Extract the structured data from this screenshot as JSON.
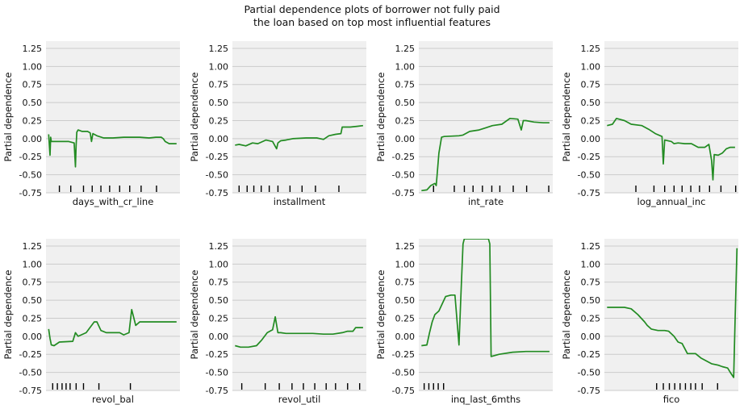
{
  "title_line1": "Partial dependence plots of borrower not fully paid",
  "title_line2": "the loan based on top most influential features",
  "style": {
    "panel_bg": "#f0f0f0",
    "grid": "#cbcbcb",
    "line": "#228b22",
    "text": "#111111"
  },
  "chart_data": [
    {
      "type": "line",
      "xlabel": "days_with_cr_line",
      "ylabel": "Partial dependence",
      "ylim": [
        -0.75,
        1.35
      ],
      "yticks": [
        -0.75,
        -0.5,
        -0.25,
        0.0,
        0.25,
        0.5,
        0.75,
        1.0,
        1.25
      ],
      "yticklabels": [
        "-0.75",
        "-0.50",
        "-0.25",
        "0.00",
        "0.25",
        "0.50",
        "0.75",
        "1.00",
        "1.25"
      ],
      "xlim": [
        0,
        100
      ],
      "grid": true,
      "deciles": [
        10,
        18.5,
        28,
        34.5,
        41,
        47.5,
        55,
        62.5,
        71,
        82.5
      ],
      "x": [
        2,
        3,
        3.5,
        4,
        6,
        9,
        12,
        17,
        21,
        22,
        22.5,
        23,
        24,
        27,
        31,
        33,
        34,
        35,
        38,
        43,
        50,
        58,
        70,
        77,
        82,
        86,
        87.5,
        89,
        92,
        96.5,
        97.5
      ],
      "y": [
        0.06,
        -0.23,
        0.02,
        -0.04,
        -0.04,
        -0.04,
        -0.04,
        -0.04,
        -0.06,
        -0.39,
        -0.1,
        0.09,
        0.12,
        0.1,
        0.1,
        0.08,
        -0.04,
        0.07,
        0.04,
        0.01,
        0.01,
        0.02,
        0.02,
        0.01,
        0.02,
        0.02,
        0.0,
        -0.04,
        -0.07,
        -0.07,
        -0.07
      ]
    },
    {
      "type": "line",
      "xlabel": "installment",
      "ylabel": "Partial dependence",
      "ylim": [
        -0.75,
        1.35
      ],
      "yticks": [
        -0.75,
        -0.5,
        -0.25,
        0.0,
        0.25,
        0.5,
        0.75,
        1.0,
        1.25
      ],
      "yticklabels": [
        "-0.75",
        "-0.50",
        "-0.25",
        "0.00",
        "0.25",
        "0.50",
        "0.75",
        "1.00",
        "1.25"
      ],
      "xlim": [
        0,
        100
      ],
      "grid": true,
      "deciles": [
        5,
        11,
        16,
        21.5,
        27.5,
        34,
        43,
        52,
        62,
        79.5
      ],
      "x": [
        2,
        5,
        10,
        15,
        19,
        25,
        30,
        33,
        34,
        36,
        40,
        45,
        55,
        63,
        68,
        72,
        77,
        81,
        82,
        88,
        93,
        97.5
      ],
      "y": [
        -0.09,
        -0.08,
        -0.1,
        -0.06,
        -0.07,
        -0.02,
        -0.04,
        -0.14,
        -0.06,
        -0.03,
        -0.02,
        0.0,
        0.01,
        0.01,
        -0.01,
        0.04,
        0.06,
        0.07,
        0.16,
        0.16,
        0.17,
        0.18
      ]
    },
    {
      "type": "line",
      "xlabel": "int_rate",
      "ylabel": "Partial dependence",
      "ylim": [
        -0.75,
        1.35
      ],
      "yticks": [
        -0.75,
        -0.5,
        -0.25,
        0.0,
        0.25,
        0.5,
        0.75,
        1.0,
        1.25
      ],
      "yticklabels": [
        "-0.75",
        "-0.50",
        "-0.25",
        "0.00",
        "0.25",
        "0.50",
        "0.75",
        "1.00",
        "1.25"
      ],
      "xlim": [
        0,
        100
      ],
      "grid": true,
      "deciles": [
        11,
        26.5,
        34,
        40.5,
        47.5,
        54.5,
        60.5,
        70.5,
        80.5,
        97
      ],
      "x": [
        2,
        6,
        9,
        12,
        13,
        15,
        17,
        19,
        30,
        33,
        38,
        45,
        50,
        55,
        62,
        68,
        74,
        76.5,
        78,
        80,
        86,
        93,
        97.5
      ],
      "y": [
        -0.72,
        -0.71,
        -0.65,
        -0.62,
        -0.65,
        -0.2,
        0.02,
        0.03,
        0.04,
        0.05,
        0.1,
        0.12,
        0.15,
        0.18,
        0.2,
        0.28,
        0.27,
        0.12,
        0.25,
        0.25,
        0.23,
        0.22,
        0.22
      ]
    },
    {
      "type": "line",
      "xlabel": "log_annual_inc",
      "ylabel": "Partial dependence",
      "ylim": [
        -0.75,
        1.35
      ],
      "yticks": [
        -0.75,
        -0.5,
        -0.25,
        0.0,
        0.25,
        0.5,
        0.75,
        1.0,
        1.25
      ],
      "yticklabels": [
        "-0.75",
        "-0.50",
        "-0.25",
        "0.00",
        "0.25",
        "0.50",
        "0.75",
        "1.00",
        "1.25"
      ],
      "xlim": [
        0,
        100
      ],
      "grid": true,
      "deciles": [
        23.5,
        37,
        45,
        52,
        58,
        64.5,
        71,
        78.5,
        87,
        98
      ],
      "x": [
        2,
        6,
        9,
        15,
        20,
        28,
        33,
        38,
        43,
        44,
        45,
        50,
        52,
        55,
        60,
        65,
        70,
        75,
        78,
        80,
        81,
        82,
        85,
        88,
        91,
        94,
        97.5
      ],
      "y": [
        0.18,
        0.2,
        0.28,
        0.25,
        0.2,
        0.18,
        0.13,
        0.07,
        0.03,
        -0.35,
        -0.02,
        -0.04,
        -0.07,
        -0.06,
        -0.07,
        -0.07,
        -0.12,
        -0.12,
        -0.08,
        -0.3,
        -0.57,
        -0.22,
        -0.23,
        -0.2,
        -0.14,
        -0.12,
        -0.12
      ]
    },
    {
      "type": "line",
      "xlabel": "revol_bal",
      "ylabel": "Partial dependence",
      "ylim": [
        -0.75,
        1.35
      ],
      "yticks": [
        -0.75,
        -0.5,
        -0.25,
        0.0,
        0.25,
        0.5,
        0.75,
        1.0,
        1.25
      ],
      "yticklabels": [
        "-0.75",
        "-0.50",
        "-0.25",
        "0.00",
        "0.25",
        "0.50",
        "0.75",
        "1.00",
        "1.25"
      ],
      "xlim": [
        0,
        100
      ],
      "grid": true,
      "deciles": [
        5,
        8.5,
        12,
        15,
        18,
        22.5,
        28,
        39.5,
        63
      ],
      "x": [
        2,
        3,
        4,
        6,
        10,
        20,
        22,
        24,
        30,
        36,
        38,
        41,
        45,
        55,
        58,
        62,
        64,
        67,
        70,
        80,
        90,
        97.5
      ],
      "y": [
        0.1,
        -0.03,
        -0.12,
        -0.13,
        -0.08,
        -0.07,
        0.05,
        0.0,
        0.05,
        0.2,
        0.2,
        0.08,
        0.05,
        0.05,
        0.02,
        0.05,
        0.37,
        0.15,
        0.2,
        0.2,
        0.2,
        0.2
      ]
    },
    {
      "type": "line",
      "xlabel": "revol_util",
      "ylabel": "Partial dependence",
      "ylim": [
        -0.75,
        1.35
      ],
      "yticks": [
        -0.75,
        -0.5,
        -0.25,
        0.0,
        0.25,
        0.5,
        0.75,
        1.0,
        1.25
      ],
      "yticklabels": [
        "-0.75",
        "-0.50",
        "-0.25",
        "0.00",
        "0.25",
        "0.50",
        "0.75",
        "1.00",
        "1.25"
      ],
      "xlim": [
        0,
        100
      ],
      "grid": true,
      "deciles": [
        7,
        24.5,
        35,
        44.5,
        53,
        61.5,
        70,
        77,
        86,
        95
      ],
      "x": [
        2,
        6,
        12,
        18,
        22,
        26,
        30,
        32,
        34,
        36,
        40,
        45,
        52,
        60,
        68,
        75,
        82,
        86,
        90,
        92,
        97.5
      ],
      "y": [
        -0.13,
        -0.15,
        -0.15,
        -0.13,
        -0.05,
        0.05,
        0.09,
        0.27,
        0.05,
        0.05,
        0.04,
        0.04,
        0.04,
        0.04,
        0.03,
        0.03,
        0.05,
        0.07,
        0.07,
        0.12,
        0.12
      ]
    },
    {
      "type": "line",
      "xlabel": "inq_last_6mths",
      "ylabel": "Partial dependence",
      "ylim": [
        -0.75,
        1.35
      ],
      "yticks": [
        -0.75,
        -0.5,
        -0.25,
        0.0,
        0.25,
        0.5,
        0.75,
        1.0,
        1.25
      ],
      "yticklabels": [
        "-0.75",
        "-0.50",
        "-0.25",
        "0.00",
        "0.25",
        "0.50",
        "0.75",
        "1.00",
        "1.25"
      ],
      "xlim": [
        0,
        100
      ],
      "grid": true,
      "deciles": [
        4,
        7.5,
        11,
        14.5,
        18.5
      ],
      "x": [
        2,
        6,
        8,
        10,
        12,
        15,
        20,
        24,
        27,
        30,
        31.5,
        33,
        34,
        35,
        36,
        52,
        53,
        54,
        60,
        70,
        80,
        90,
        97.5
      ],
      "y": [
        -0.13,
        -0.12,
        0.05,
        0.2,
        0.3,
        0.35,
        0.55,
        0.57,
        0.57,
        -0.12,
        0.6,
        1.28,
        1.35,
        1.35,
        1.35,
        1.35,
        1.28,
        -0.28,
        -0.25,
        -0.22,
        -0.21,
        -0.21,
        -0.21
      ]
    },
    {
      "type": "line",
      "xlabel": "fico",
      "ylabel": "Partial dependence",
      "ylim": [
        -0.75,
        1.35
      ],
      "yticks": [
        -0.75,
        -0.5,
        -0.25,
        0.0,
        0.25,
        0.5,
        0.75,
        1.0,
        1.25
      ],
      "yticklabels": [
        "-0.75",
        "-0.50",
        "-0.25",
        "0.00",
        "0.25",
        "0.50",
        "0.75",
        "1.00",
        "1.25"
      ],
      "xlim": [
        0,
        100
      ],
      "grid": true,
      "deciles": [
        39,
        44,
        48.5,
        52.5,
        56.5,
        60.5,
        64.5,
        68,
        73,
        84.5
      ],
      "x": [
        2,
        10,
        15,
        20,
        25,
        30,
        32,
        35,
        40,
        45,
        48,
        52,
        55,
        58,
        62,
        66,
        68,
        72,
        80,
        85,
        88,
        92,
        94,
        96.5,
        97.5,
        99
      ],
      "y": [
        0.4,
        0.4,
        0.4,
        0.38,
        0.3,
        0.2,
        0.15,
        0.1,
        0.08,
        0.08,
        0.07,
        0.0,
        -0.08,
        -0.1,
        -0.24,
        -0.24,
        -0.24,
        -0.3,
        -0.38,
        -0.4,
        -0.42,
        -0.44,
        -0.5,
        -0.57,
        0.2,
        1.22
      ]
    }
  ]
}
